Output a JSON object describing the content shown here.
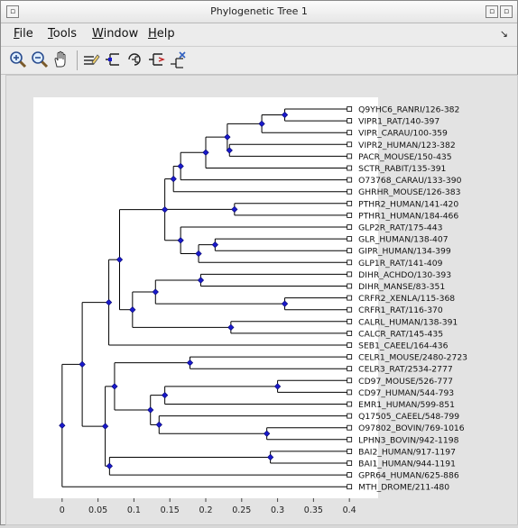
{
  "window": {
    "title": "Phylogenetic Tree 1"
  },
  "menubar": {
    "items": [
      "File",
      "Tools",
      "Window",
      "Help"
    ],
    "overflow_icon": "corner-arrow-icon"
  },
  "toolbar": {
    "tools": [
      {
        "name": "zoom-in-icon"
      },
      {
        "name": "zoom-out-icon"
      },
      {
        "name": "pan-hand-icon"
      },
      {
        "name": "rename-icon"
      },
      {
        "name": "collapse-branch-icon"
      },
      {
        "name": "rotate-branch-icon"
      },
      {
        "name": "reroot-icon"
      },
      {
        "name": "prune-icon"
      }
    ]
  },
  "colors": {
    "node": "#1a1acc",
    "branch": "#000000",
    "plot_bg": "#ffffff"
  },
  "chart_data": {
    "type": "dendrogram",
    "xlim": [
      -0.04,
      0.44
    ],
    "xticks": [
      "0",
      "0.05",
      "0.1",
      "0.15",
      "0.2",
      "0.25",
      "0.3",
      "0.35",
      "0.4"
    ],
    "leaves": [
      "Q9YHC6_RANRI/126-382",
      "VIPR1_RAT/140-397",
      "VIPR_CARAU/100-359",
      "VIPR2_HUMAN/123-382",
      "PACR_MOUSE/150-435",
      "SCTR_RABIT/135-391",
      "O73768_CARAU/133-390",
      "GHRHR_MOUSE/126-383",
      "PTHR2_HUMAN/141-420",
      "PTHR1_HUMAN/184-466",
      "GLP2R_RAT/175-443",
      "GLR_HUMAN/138-407",
      "GIPR_HUMAN/134-399",
      "GLP1R_RAT/141-409",
      "DIHR_ACHDO/130-393",
      "DIHR_MANSE/83-351",
      "CRFR2_XENLA/115-368",
      "CRFR1_RAT/116-370",
      "CALRL_HUMAN/138-391",
      "CALCR_RAT/145-435",
      "SEB1_CAEEL/164-436",
      "CELR1_MOUSE/2480-2723",
      "CELR3_RAT/2534-2777",
      "CD97_MOUSE/526-777",
      "CD97_HUMAN/544-793",
      "EMR1_HUMAN/599-851",
      "Q17505_CAEEL/548-799",
      "O97802_BOVIN/769-1016",
      "LPHN3_BOVIN/942-1198",
      "BAI2_HUMAN/917-1197",
      "BAI1_HUMAN/944-1191",
      "GPR64_HUMAN/625-886",
      "MTH_DROME/211-480"
    ],
    "nodes": [
      {
        "id": "n1",
        "x": 0.31,
        "children": [
          "L0",
          "L1"
        ]
      },
      {
        "id": "n2",
        "x": 0.278,
        "children": [
          "n1",
          "L2"
        ]
      },
      {
        "id": "n3",
        "x": 0.233,
        "children": [
          "L3",
          "L4"
        ]
      },
      {
        "id": "n4",
        "x": 0.23,
        "children": [
          "n2",
          "n3"
        ]
      },
      {
        "id": "n5",
        "x": 0.2,
        "children": [
          "n4",
          "L5"
        ]
      },
      {
        "id": "n6",
        "x": 0.165,
        "children": [
          "n5",
          "L6"
        ]
      },
      {
        "id": "n7",
        "x": 0.155,
        "children": [
          "n6",
          "L7"
        ]
      },
      {
        "id": "n8",
        "x": 0.24,
        "children": [
          "L8",
          "L9"
        ]
      },
      {
        "id": "n9",
        "x": 0.213,
        "children": [
          "L11",
          "L12"
        ]
      },
      {
        "id": "n10",
        "x": 0.19,
        "children": [
          "n9",
          "L13"
        ]
      },
      {
        "id": "n11",
        "x": 0.165,
        "children": [
          "L10",
          "n10"
        ]
      },
      {
        "id": "n12",
        "x": 0.143,
        "children": [
          "n7",
          "n8",
          "n11"
        ]
      },
      {
        "id": "n13",
        "x": 0.193,
        "children": [
          "L14",
          "L15"
        ]
      },
      {
        "id": "n14",
        "x": 0.31,
        "children": [
          "L16",
          "L17"
        ]
      },
      {
        "id": "n15",
        "x": 0.13,
        "children": [
          "n13",
          "n14"
        ]
      },
      {
        "id": "n16",
        "x": 0.235,
        "children": [
          "L18",
          "L19"
        ]
      },
      {
        "id": "n17",
        "x": 0.098,
        "children": [
          "n15",
          "n16"
        ]
      },
      {
        "id": "n18",
        "x": 0.08,
        "children": [
          "n12",
          "n17"
        ]
      },
      {
        "id": "n19",
        "x": 0.065,
        "children": [
          "n18",
          "L20"
        ]
      },
      {
        "id": "n20",
        "x": 0.178,
        "children": [
          "L21",
          "L22"
        ]
      },
      {
        "id": "n21",
        "x": 0.3,
        "children": [
          "L23",
          "L24"
        ]
      },
      {
        "id": "n22",
        "x": 0.143,
        "children": [
          "n21",
          "L25"
        ]
      },
      {
        "id": "n23",
        "x": 0.285,
        "children": [
          "L27",
          "L28"
        ]
      },
      {
        "id": "n24",
        "x": 0.135,
        "children": [
          "L26",
          "n23"
        ]
      },
      {
        "id": "n25",
        "x": 0.123,
        "children": [
          "n22",
          "n24"
        ]
      },
      {
        "id": "n26",
        "x": 0.073,
        "children": [
          "n20",
          "n25"
        ]
      },
      {
        "id": "n27",
        "x": 0.29,
        "children": [
          "L29",
          "L30"
        ]
      },
      {
        "id": "n28",
        "x": 0.066,
        "children": [
          "n27",
          "L31"
        ]
      },
      {
        "id": "n29",
        "x": 0.06,
        "children": [
          "n26",
          "n28"
        ]
      },
      {
        "id": "n30",
        "x": 0.028,
        "children": [
          "n19",
          "n29"
        ]
      },
      {
        "id": "n31",
        "x": 0.0,
        "children": [
          "n30",
          "L32"
        ]
      }
    ]
  }
}
